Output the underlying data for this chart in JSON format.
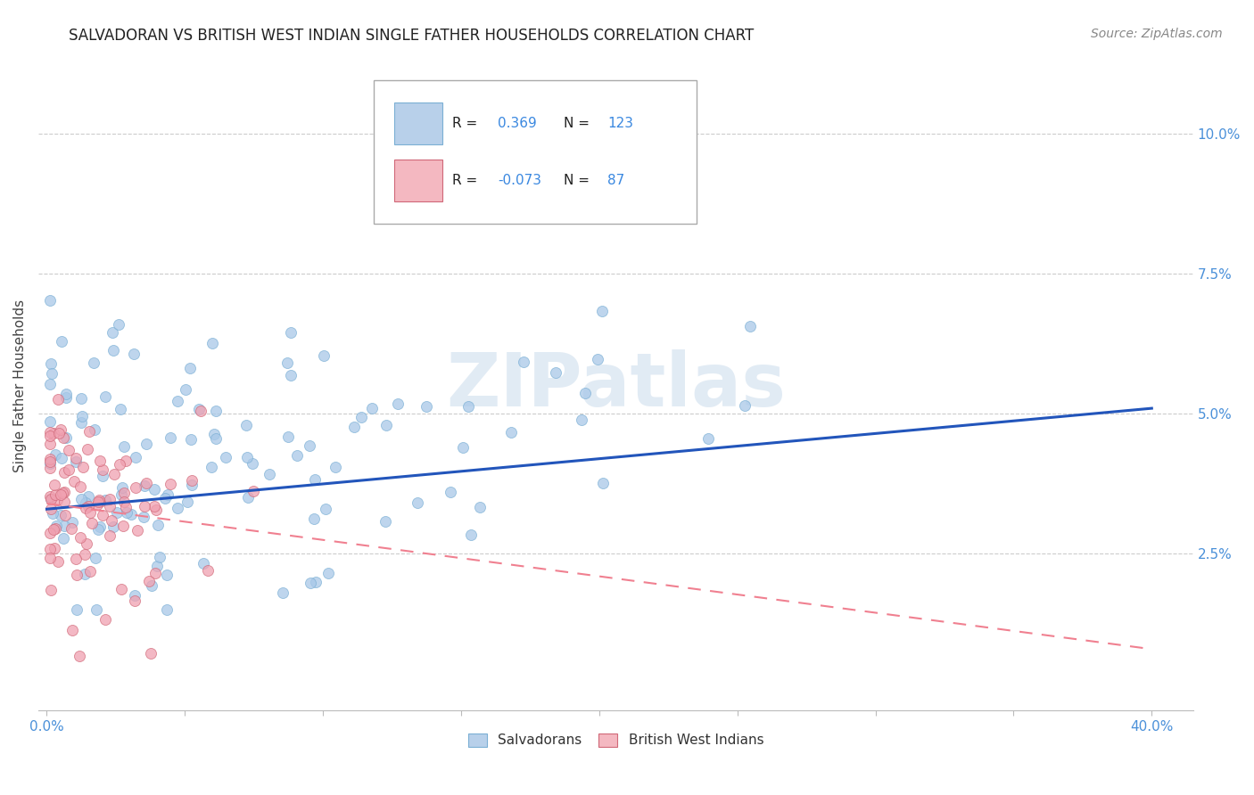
{
  "title": "SALVADORAN VS BRITISH WEST INDIAN SINGLE FATHER HOUSEHOLDS CORRELATION CHART",
  "source": "Source: ZipAtlas.com",
  "ylabel": "Single Father Households",
  "ytick_labels": [
    "2.5%",
    "5.0%",
    "7.5%",
    "10.0%"
  ],
  "ytick_values": [
    0.025,
    0.05,
    0.075,
    0.1
  ],
  "salvadorans_color": "#a8c8e8",
  "salvadorans_edge": "#7bafd4",
  "british_wi_color": "#f0a0b0",
  "british_wi_edge": "#d06878",
  "trend_salv_color": "#2255bb",
  "trend_bwi_color": "#f08090",
  "legend_salv_face": "#b8d0ea",
  "legend_bwi_face": "#f4b8c1",
  "watermark": "ZIPatlas",
  "salv_R": 0.369,
  "salv_N": 123,
  "bwi_R": -0.073,
  "bwi_N": 87,
  "salv_trend_x0": 0.0,
  "salv_trend_x1": 0.4,
  "salv_trend_y0": 0.033,
  "salv_trend_y1": 0.051,
  "bwi_trend_x0": 0.0,
  "bwi_trend_x1": 0.4,
  "bwi_trend_y0": 0.034,
  "bwi_trend_y1": 0.008,
  "xlim_min": -0.003,
  "xlim_max": 0.415,
  "ylim_min": -0.003,
  "ylim_max": 0.113,
  "grid_color": "#cccccc",
  "title_fontsize": 12,
  "source_fontsize": 10,
  "tick_fontsize": 11,
  "ylabel_fontsize": 11,
  "watermark_fontsize": 60,
  "watermark_color": "#c5d8ea",
  "watermark_alpha": 0.5
}
